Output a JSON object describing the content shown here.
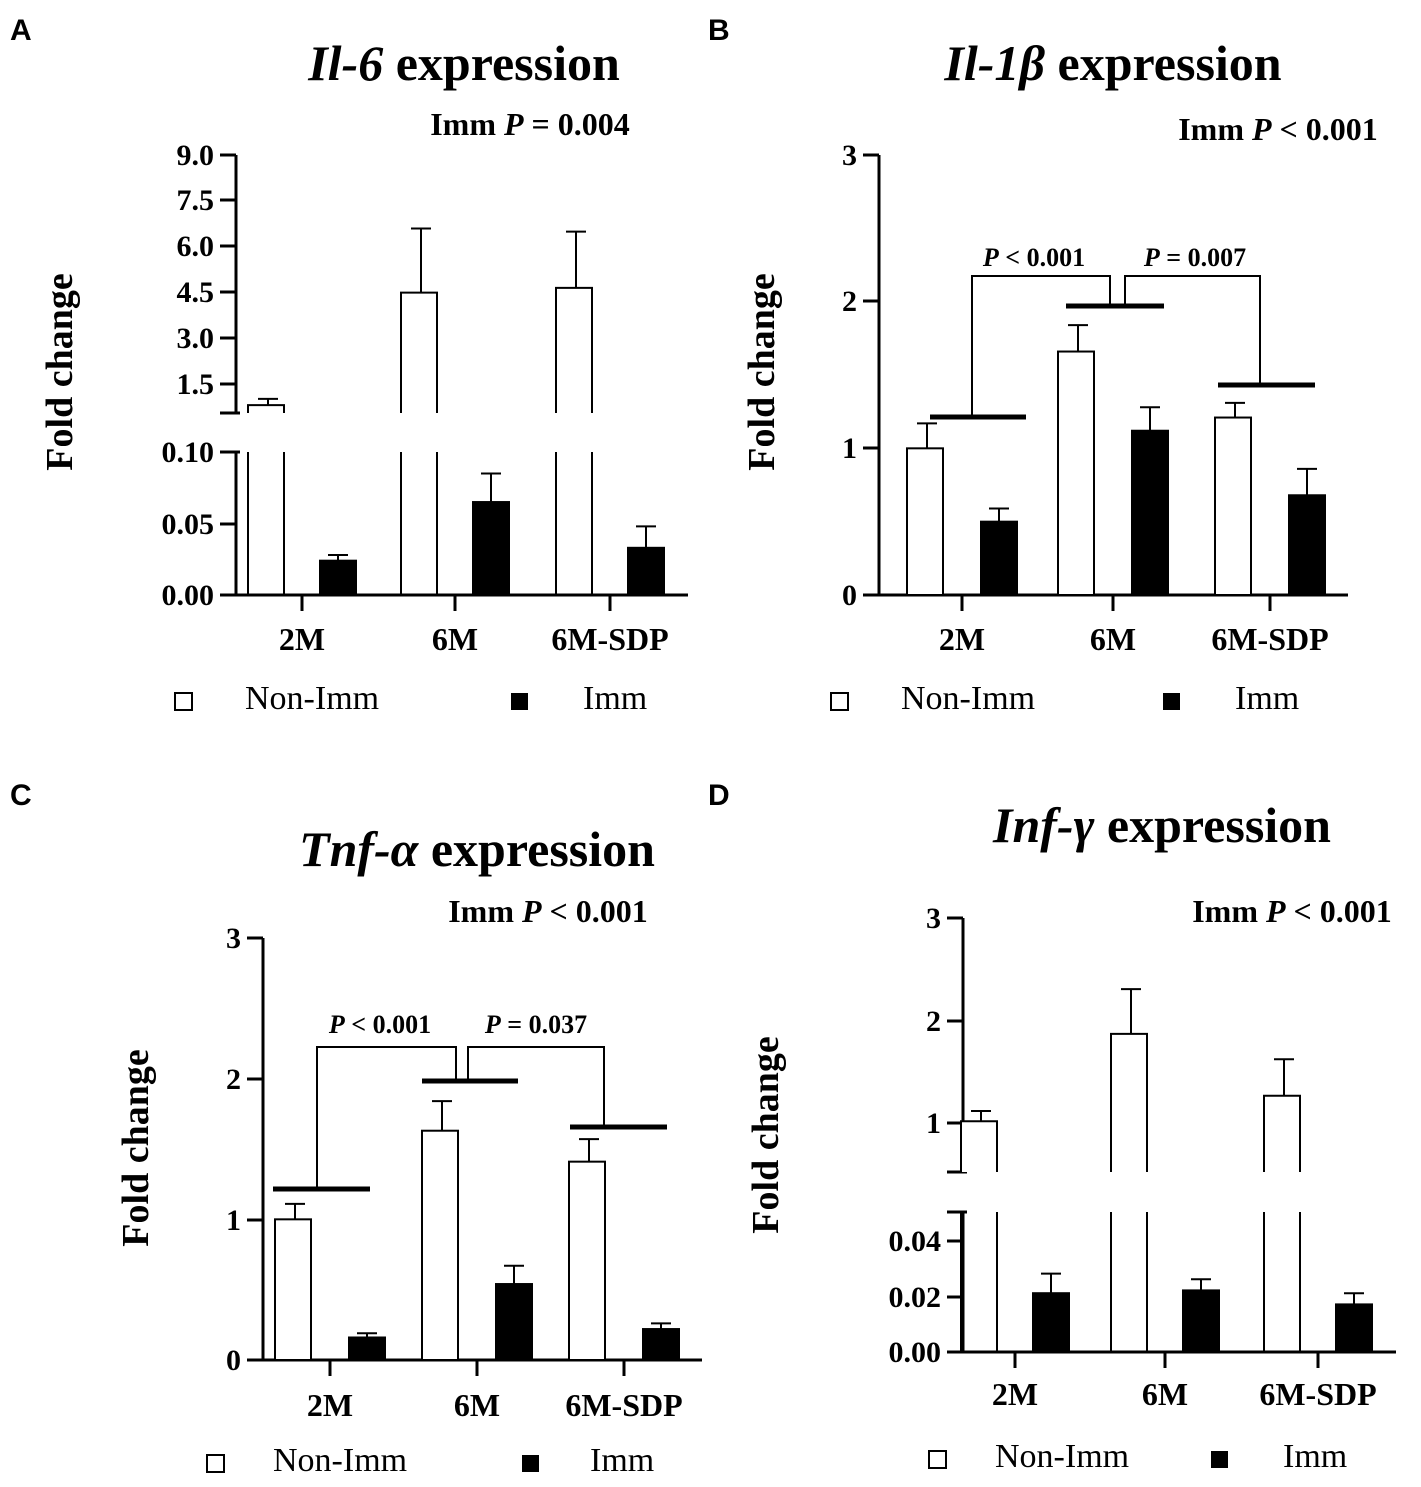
{
  "figure": {
    "panels": [
      {
        "label": "A",
        "title_italic": "Il-6",
        "title_rest": " expression",
        "imm_prefix": "Imm ",
        "imm_p_letter": "P",
        "imm_rest": " = 0.004",
        "ylabel": "Fold change",
        "legend_nonimm": "Non-Imm",
        "legend_imm": "Imm",
        "brackets": []
      },
      {
        "label": "B",
        "title_italic": "Il-1β",
        "title_rest": " expression",
        "imm_prefix": "Imm ",
        "imm_p_letter": "P",
        "imm_rest": " < 0.001",
        "ylabel": "Fold change",
        "legend_nonimm": "Non-Imm",
        "legend_imm": "Imm",
        "brackets": [
          {
            "from": "2M",
            "to": "6M",
            "p_letter": "P",
            "p_text": " < 0.001"
          },
          {
            "from": "6M",
            "to": "6M-SDP",
            "p_letter": "P",
            "p_text": " = 0.007"
          }
        ]
      },
      {
        "label": "C",
        "title_italic": "Tnf-α",
        "title_rest": " expression",
        "imm_prefix": "Imm ",
        "imm_p_letter": "P",
        "imm_rest": " < 0.001",
        "ylabel": "Fold change",
        "legend_nonimm": "Non-Imm",
        "legend_imm": "Imm",
        "brackets": [
          {
            "from": "2M",
            "to": "6M",
            "p_letter": "P",
            "p_text": " < 0.001"
          },
          {
            "from": "6M",
            "to": "6M-SDP",
            "p_letter": "P",
            "p_text": " = 0.037"
          }
        ]
      },
      {
        "label": "D",
        "title_italic": "Inf-γ",
        "title_rest": " expression",
        "imm_prefix": "Imm ",
        "imm_p_letter": "P",
        "imm_rest": " < 0.001",
        "ylabel": "Fold change",
        "legend_nonimm": "Non-Imm",
        "legend_imm": "Imm",
        "brackets": []
      }
    ]
  },
  "chart_data": [
    {
      "type": "bar",
      "title": "Il-6 expression",
      "ylabel": "Fold change",
      "categories": [
        "2M",
        "6M",
        "6M-SDP"
      ],
      "broken_axis": true,
      "lower_range": [
        0,
        0.1
      ],
      "lower_ticks": [
        "0.00",
        "0.05",
        "0.10"
      ],
      "upper_range": [
        0.75,
        9.0
      ],
      "upper_ticks": [
        "1.5",
        "3.0",
        "4.5",
        "6.0",
        "7.5",
        "9.0"
      ],
      "series": [
        {
          "name": "Non-Imm",
          "values": [
            1.0,
            4.6,
            4.75
          ],
          "errors": [
            0.2,
            2.05,
            1.8
          ]
        },
        {
          "name": "Imm",
          "values": [
            0.024,
            0.065,
            0.033
          ],
          "errors": [
            0.004,
            0.02,
            0.015
          ]
        }
      ]
    },
    {
      "type": "bar",
      "title": "Il-1β expression",
      "ylabel": "Fold change",
      "categories": [
        "2M",
        "6M",
        "6M-SDP"
      ],
      "ylim": [
        0,
        3
      ],
      "ticks": [
        "0",
        "1",
        "2",
        "3"
      ],
      "series": [
        {
          "name": "Non-Imm",
          "values": [
            1.0,
            1.66,
            1.21
          ],
          "errors": [
            0.17,
            0.18,
            0.1
          ]
        },
        {
          "name": "Imm",
          "values": [
            0.5,
            1.12,
            0.68
          ],
          "errors": [
            0.09,
            0.16,
            0.18
          ]
        }
      ]
    },
    {
      "type": "bar",
      "title": "Tnf-α expression",
      "ylabel": "Fold change",
      "categories": [
        "2M",
        "6M",
        "6M-SDP"
      ],
      "ylim": [
        0,
        3
      ],
      "ticks": [
        "0",
        "1",
        "2",
        "3"
      ],
      "series": [
        {
          "name": "Non-Imm",
          "values": [
            1.0,
            1.63,
            1.41
          ],
          "errors": [
            0.11,
            0.21,
            0.16
          ]
        },
        {
          "name": "Imm",
          "values": [
            0.16,
            0.54,
            0.22
          ],
          "errors": [
            0.03,
            0.13,
            0.04
          ]
        }
      ]
    },
    {
      "type": "bar",
      "title": "Inf-γ expression",
      "ylabel": "Fold change",
      "categories": [
        "2M",
        "6M",
        "6M-SDP"
      ],
      "broken_axis": true,
      "lower_range": [
        0,
        0.05
      ],
      "lower_ticks": [
        "0.00",
        "0.02",
        "0.04"
      ],
      "upper_range": [
        0.5,
        3
      ],
      "upper_ticks": [
        "1",
        "2",
        "3"
      ],
      "series": [
        {
          "name": "Non-Imm",
          "values": [
            1.0,
            1.86,
            1.25
          ],
          "errors": [
            0.1,
            0.44,
            0.36
          ]
        },
        {
          "name": "Imm",
          "values": [
            0.021,
            0.022,
            0.017
          ],
          "errors": [
            0.007,
            0.004,
            0.004
          ]
        }
      ]
    }
  ]
}
